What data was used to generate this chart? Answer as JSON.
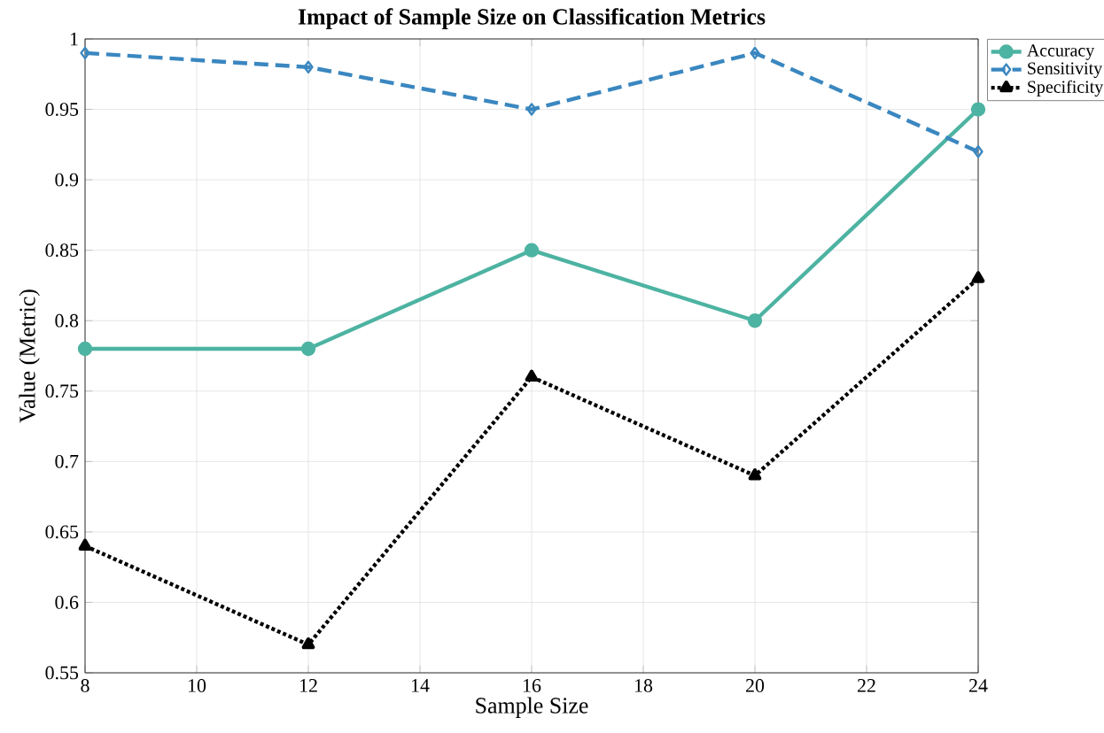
{
  "chart_data": {
    "type": "line",
    "title": "Impact of Sample Size on Classification Metrics",
    "xlabel": "Sample Size",
    "ylabel": "Value (Metric)",
    "x": [
      8,
      12,
      16,
      20,
      24
    ],
    "series": [
      {
        "name": "Accuracy",
        "color": "#4db3a2",
        "values": [
          0.78,
          0.78,
          0.85,
          0.8,
          0.95
        ],
        "marker": "circle",
        "line_style": "solid"
      },
      {
        "name": "Sensitivity",
        "color": "#3a87c0",
        "values": [
          0.99,
          0.98,
          0.95,
          0.99,
          0.92
        ],
        "marker": "diamond",
        "line_style": "dashed"
      },
      {
        "name": "Specificity",
        "color": "#000000",
        "values": [
          0.64,
          0.57,
          0.76,
          0.69,
          0.83
        ],
        "marker": "triangle",
        "line_style": "dotted"
      }
    ],
    "xlim": [
      8,
      24
    ],
    "xticks": [
      8,
      10,
      12,
      14,
      16,
      18,
      20,
      22,
      24
    ],
    "ylim": [
      0.55,
      1
    ],
    "yticks": [
      0.55,
      0.6,
      0.65,
      0.7,
      0.75,
      0.8,
      0.85,
      0.9,
      0.95,
      1
    ],
    "grid": true,
    "legend": "top right"
  }
}
